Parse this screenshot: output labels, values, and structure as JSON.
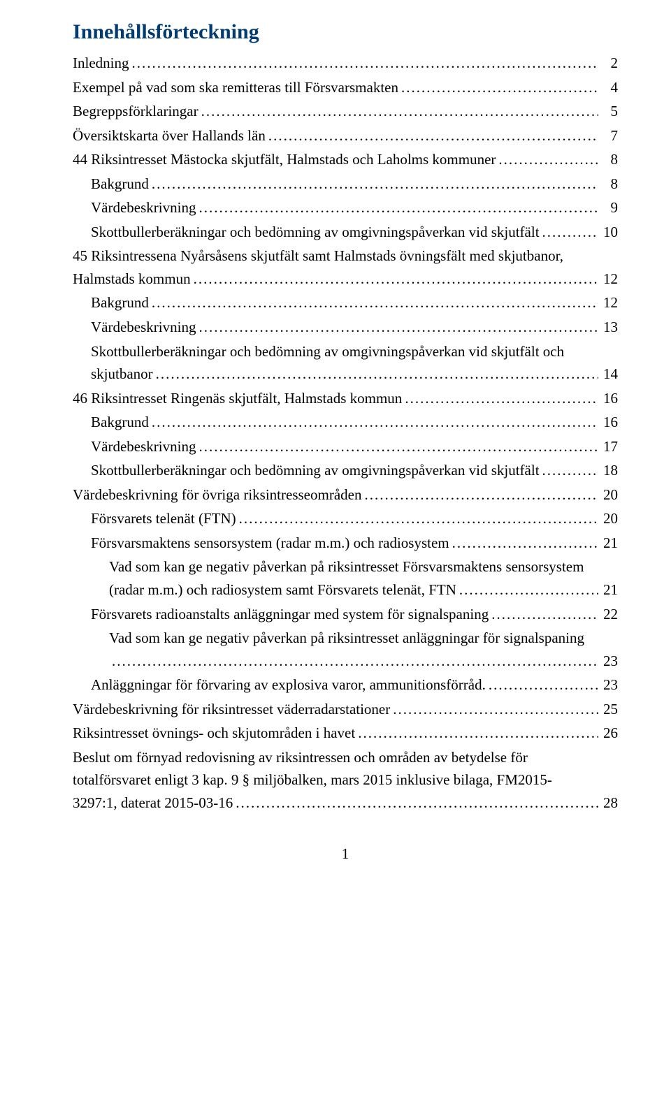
{
  "title": "Innehållsförteckning",
  "page_number": "1",
  "entries": [
    {
      "indent": 0,
      "label": "Inledning",
      "page": "2"
    },
    {
      "indent": 0,
      "label": "Exempel på vad som ska remitteras till Försvarsmakten",
      "page": "4"
    },
    {
      "indent": 0,
      "label": "Begreppsförklaringar",
      "page": "5"
    },
    {
      "indent": 0,
      "label": "Översiktskarta över Hallands län",
      "page": "7"
    },
    {
      "indent": 0,
      "label": "44 Riksintresset Mästocka skjutfält, Halmstads och Laholms kommuner",
      "page": "8"
    },
    {
      "indent": 1,
      "label": "Bakgrund",
      "page": "8"
    },
    {
      "indent": 1,
      "label": "Värdebeskrivning",
      "page": "9"
    },
    {
      "indent": 1,
      "label": "Skottbullerberäkningar och bedömning av omgivningspåverkan vid skjutfält",
      "page": "10"
    },
    {
      "indent": 0,
      "wrap": true,
      "label1": "45 Riksintressena Nyårsåsens skjutfält samt Halmstads övningsfält med skjutbanor,",
      "label2": "Halmstads kommun",
      "page": "12"
    },
    {
      "indent": 1,
      "label": "Bakgrund",
      "page": "12"
    },
    {
      "indent": 1,
      "label": "Värdebeskrivning",
      "page": "13"
    },
    {
      "indent": 1,
      "wrap": true,
      "label1": "Skottbullerberäkningar och bedömning av omgivningspåverkan vid skjutfält och",
      "label2": "skjutbanor",
      "page": "14"
    },
    {
      "indent": 0,
      "label": "46 Riksintresset Ringenäs skjutfält, Halmstads kommun",
      "page": "16"
    },
    {
      "indent": 1,
      "label": "Bakgrund",
      "page": "16"
    },
    {
      "indent": 1,
      "label": "Värdebeskrivning",
      "page": "17"
    },
    {
      "indent": 1,
      "label": "Skottbullerberäkningar och bedömning av omgivningspåverkan vid skjutfält",
      "page": "18"
    },
    {
      "indent": 0,
      "label": "Värdebeskrivning för övriga riksintresseområden",
      "page": "20"
    },
    {
      "indent": 1,
      "label": "Försvarets telenät (FTN)",
      "page": "20"
    },
    {
      "indent": 1,
      "label": "Försvarsmaktens sensorsystem (radar m.m.) och radiosystem",
      "page": "21"
    },
    {
      "indent": 2,
      "wrap": true,
      "label1": "Vad som kan ge negativ påverkan på riksintresset Försvarsmaktens sensorsystem",
      "label2": "(radar m.m.) och radiosystem samt Försvarets telenät, FTN",
      "page": "21"
    },
    {
      "indent": 1,
      "label": "Försvarets radioanstalts anläggningar med system för signalspaning",
      "page": "22"
    },
    {
      "indent": 2,
      "wrap": true,
      "label1": "Vad som kan ge negativ påverkan på riksintresset anläggningar för signalspaning",
      "label2": "",
      "page": "23"
    },
    {
      "indent": 1,
      "label": "Anläggningar för förvaring av explosiva varor, ammunitionsförråd.",
      "page": "23"
    },
    {
      "indent": 0,
      "label": "Värdebeskrivning för riksintresset väderradarstationer",
      "page": "25"
    },
    {
      "indent": 0,
      "label": "Riksintresset övnings- och skjutområden i havet",
      "page": "26"
    },
    {
      "indent": 0,
      "wrap": true,
      "label1": "Beslut om förnyad redovisning av riksintressen och områden av betydelse för",
      "label2b": "totalförsvaret enligt 3 kap. 9 § miljöbalken, mars 2015 inklusive bilaga, FM2015-",
      "label2": "3297:1, daterat 2015-03-16",
      "page": "28"
    }
  ]
}
